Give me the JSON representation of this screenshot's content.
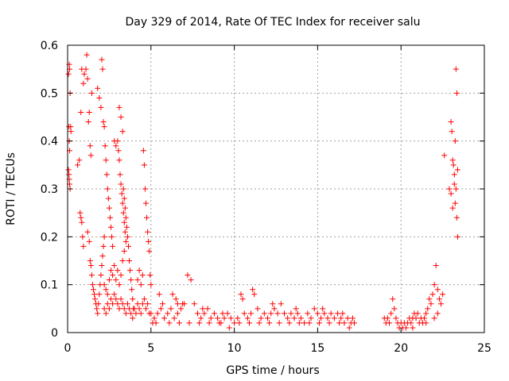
{
  "chart_data": {
    "type": "scatter",
    "title": "Day 329 of 2014, Rate Of TEC Index for receiver salu",
    "xlabel": "GPS time / hours",
    "ylabel": "ROTI / TECUs",
    "xlim": [
      0,
      25
    ],
    "ylim": [
      0,
      0.6
    ],
    "xticks": [
      0,
      5,
      10,
      15,
      20,
      25
    ],
    "yticks": [
      0,
      0.1,
      0.2,
      0.3,
      0.4,
      0.5,
      0.6
    ],
    "xtick_labels": [
      "0",
      "5",
      "10",
      "15",
      "20",
      "25"
    ],
    "ytick_labels": [
      "0",
      "0.1",
      "0.2",
      "0.3",
      "0.4",
      "0.5",
      "0.6"
    ],
    "grid": true,
    "marker": "+",
    "marker_color": "#ff0000",
    "series": [
      {
        "name": "ROTI",
        "points": [
          [
            0.05,
            0.54
          ],
          [
            0.1,
            0.56
          ],
          [
            0.12,
            0.55
          ],
          [
            0.15,
            0.5
          ],
          [
            0.08,
            0.43
          ],
          [
            0.1,
            0.4
          ],
          [
            0.12,
            0.38
          ],
          [
            0.05,
            0.34
          ],
          [
            0.08,
            0.33
          ],
          [
            0.1,
            0.32
          ],
          [
            0.12,
            0.31
          ],
          [
            0.15,
            0.3
          ],
          [
            0.18,
            0.43
          ],
          [
            0.2,
            0.42
          ],
          [
            0.6,
            0.35
          ],
          [
            0.7,
            0.36
          ],
          [
            0.8,
            0.46
          ],
          [
            0.85,
            0.55
          ],
          [
            0.95,
            0.52
          ],
          [
            1.0,
            0.54
          ],
          [
            1.1,
            0.55
          ],
          [
            1.15,
            0.58
          ],
          [
            1.2,
            0.53
          ],
          [
            1.25,
            0.44
          ],
          [
            1.3,
            0.46
          ],
          [
            1.35,
            0.39
          ],
          [
            1.4,
            0.37
          ],
          [
            1.45,
            0.5
          ],
          [
            0.75,
            0.25
          ],
          [
            0.8,
            0.24
          ],
          [
            0.85,
            0.23
          ],
          [
            0.9,
            0.2
          ],
          [
            0.95,
            0.18
          ],
          [
            1.2,
            0.21
          ],
          [
            1.3,
            0.19
          ],
          [
            1.35,
            0.15
          ],
          [
            1.4,
            0.14
          ],
          [
            1.45,
            0.12
          ],
          [
            1.5,
            0.1
          ],
          [
            1.55,
            0.09
          ],
          [
            1.6,
            0.08
          ],
          [
            1.65,
            0.07
          ],
          [
            1.7,
            0.06
          ],
          [
            1.75,
            0.05
          ],
          [
            1.8,
            0.04
          ],
          [
            1.85,
            0.06
          ],
          [
            1.9,
            0.08
          ],
          [
            1.95,
            0.1
          ],
          [
            2.0,
            0.12
          ],
          [
            2.05,
            0.14
          ],
          [
            2.1,
            0.16
          ],
          [
            2.15,
            0.18
          ],
          [
            2.2,
            0.2
          ],
          [
            1.8,
            0.51
          ],
          [
            1.9,
            0.49
          ],
          [
            2.0,
            0.47
          ],
          [
            2.05,
            0.57
          ],
          [
            2.1,
            0.55
          ],
          [
            2.15,
            0.44
          ],
          [
            2.2,
            0.43
          ],
          [
            2.25,
            0.39
          ],
          [
            2.3,
            0.36
          ],
          [
            2.35,
            0.33
          ],
          [
            2.4,
            0.3
          ],
          [
            2.45,
            0.28
          ],
          [
            2.5,
            0.26
          ],
          [
            2.55,
            0.24
          ],
          [
            2.6,
            0.22
          ],
          [
            2.65,
            0.2
          ],
          [
            2.7,
            0.18
          ],
          [
            2.2,
            0.1
          ],
          [
            2.3,
            0.09
          ],
          [
            2.4,
            0.08
          ],
          [
            2.5,
            0.11
          ],
          [
            2.6,
            0.13
          ],
          [
            2.7,
            0.12
          ],
          [
            2.8,
            0.14
          ],
          [
            2.9,
            0.11
          ],
          [
            3.0,
            0.13
          ],
          [
            3.1,
            0.1
          ],
          [
            3.2,
            0.12
          ],
          [
            3.3,
            0.15
          ],
          [
            3.4,
            0.17
          ],
          [
            3.5,
            0.19
          ],
          [
            2.8,
            0.4
          ],
          [
            2.9,
            0.39
          ],
          [
            3.0,
            0.4
          ],
          [
            3.05,
            0.38
          ],
          [
            3.1,
            0.36
          ],
          [
            3.15,
            0.33
          ],
          [
            3.2,
            0.31
          ],
          [
            3.25,
            0.29
          ],
          [
            3.3,
            0.27
          ],
          [
            3.35,
            0.25
          ],
          [
            3.4,
            0.23
          ],
          [
            3.45,
            0.21
          ],
          [
            3.1,
            0.47
          ],
          [
            3.2,
            0.45
          ],
          [
            3.3,
            0.42
          ],
          [
            3.35,
            0.3
          ],
          [
            3.4,
            0.28
          ],
          [
            3.45,
            0.26
          ],
          [
            3.5,
            0.24
          ],
          [
            3.55,
            0.22
          ],
          [
            3.6,
            0.2
          ],
          [
            3.65,
            0.18
          ],
          [
            3.7,
            0.15
          ],
          [
            3.75,
            0.13
          ],
          [
            3.8,
            0.11
          ],
          [
            3.85,
            0.09
          ],
          [
            3.9,
            0.07
          ],
          [
            3.95,
            0.05
          ],
          [
            2.2,
            0.05
          ],
          [
            2.3,
            0.04
          ],
          [
            2.4,
            0.06
          ],
          [
            2.5,
            0.05
          ],
          [
            2.6,
            0.07
          ],
          [
            2.7,
            0.06
          ],
          [
            2.8,
            0.08
          ],
          [
            2.9,
            0.07
          ],
          [
            3.0,
            0.06
          ],
          [
            3.1,
            0.05
          ],
          [
            3.2,
            0.07
          ],
          [
            3.3,
            0.06
          ],
          [
            3.4,
            0.05
          ],
          [
            3.5,
            0.04
          ],
          [
            3.6,
            0.06
          ],
          [
            3.7,
            0.05
          ],
          [
            3.8,
            0.04
          ],
          [
            3.9,
            0.03
          ],
          [
            4.0,
            0.05
          ],
          [
            4.1,
            0.04
          ],
          [
            4.2,
            0.06
          ],
          [
            4.3,
            0.05
          ],
          [
            4.4,
            0.04
          ],
          [
            4.5,
            0.06
          ],
          [
            4.6,
            0.07
          ],
          [
            4.7,
            0.05
          ],
          [
            4.8,
            0.06
          ],
          [
            4.9,
            0.04
          ],
          [
            4.55,
            0.38
          ],
          [
            4.6,
            0.35
          ],
          [
            4.65,
            0.3
          ],
          [
            4.7,
            0.27
          ],
          [
            4.75,
            0.24
          ],
          [
            4.8,
            0.21
          ],
          [
            4.85,
            0.19
          ],
          [
            4.9,
            0.17
          ],
          [
            4.95,
            0.12
          ],
          [
            5.0,
            0.1
          ],
          [
            4.2,
            0.11
          ],
          [
            4.3,
            0.13
          ],
          [
            4.4,
            0.1
          ],
          [
            4.5,
            0.12
          ],
          [
            5.0,
            0.04
          ],
          [
            5.2,
            0.03
          ],
          [
            5.4,
            0.04
          ],
          [
            5.6,
            0.05
          ],
          [
            5.8,
            0.03
          ],
          [
            6.0,
            0.04
          ],
          [
            6.2,
            0.05
          ],
          [
            6.4,
            0.03
          ],
          [
            6.6,
            0.04
          ],
          [
            6.8,
            0.05
          ],
          [
            7.0,
            0.06
          ],
          [
            7.2,
            0.12
          ],
          [
            7.4,
            0.11
          ],
          [
            7.6,
            0.06
          ],
          [
            5.5,
            0.08
          ],
          [
            5.7,
            0.06
          ],
          [
            6.3,
            0.08
          ],
          [
            6.5,
            0.07
          ],
          [
            6.9,
            0.06
          ],
          [
            7.8,
            0.04
          ],
          [
            8.0,
            0.03
          ],
          [
            8.2,
            0.04
          ],
          [
            8.4,
            0.05
          ],
          [
            8.6,
            0.03
          ],
          [
            8.8,
            0.04
          ],
          [
            9.0,
            0.03
          ],
          [
            9.2,
            0.02
          ],
          [
            9.4,
            0.03
          ],
          [
            9.6,
            0.04
          ],
          [
            9.8,
            0.03
          ],
          [
            10.0,
            0.02
          ],
          [
            10.2,
            0.03
          ],
          [
            10.4,
            0.08
          ],
          [
            10.5,
            0.07
          ],
          [
            10.6,
            0.04
          ],
          [
            10.8,
            0.03
          ],
          [
            11.0,
            0.04
          ],
          [
            11.1,
            0.09
          ],
          [
            11.2,
            0.08
          ],
          [
            11.4,
            0.05
          ],
          [
            11.6,
            0.03
          ],
          [
            11.8,
            0.04
          ],
          [
            12.0,
            0.03
          ],
          [
            12.2,
            0.04
          ],
          [
            12.4,
            0.05
          ],
          [
            12.6,
            0.04
          ],
          [
            12.8,
            0.06
          ],
          [
            13.0,
            0.04
          ],
          [
            13.2,
            0.03
          ],
          [
            13.4,
            0.04
          ],
          [
            13.6,
            0.03
          ],
          [
            13.8,
            0.04
          ],
          [
            14.0,
            0.03
          ],
          [
            14.2,
            0.02
          ],
          [
            14.4,
            0.04
          ],
          [
            14.6,
            0.03
          ],
          [
            14.8,
            0.05
          ],
          [
            15.0,
            0.04
          ],
          [
            15.2,
            0.03
          ],
          [
            15.4,
            0.04
          ],
          [
            15.6,
            0.03
          ],
          [
            15.8,
            0.04
          ],
          [
            16.0,
            0.03
          ],
          [
            16.2,
            0.04
          ],
          [
            16.4,
            0.03
          ],
          [
            16.6,
            0.02
          ],
          [
            16.8,
            0.03
          ],
          [
            17.0,
            0.02
          ],
          [
            17.1,
            0.03
          ],
          [
            17.2,
            0.02
          ],
          [
            5.1,
            0.02
          ],
          [
            5.3,
            0.02
          ],
          [
            6.1,
            0.02
          ],
          [
            6.7,
            0.02
          ],
          [
            7.3,
            0.02
          ],
          [
            7.9,
            0.02
          ],
          [
            8.5,
            0.02
          ],
          [
            9.1,
            0.02
          ],
          [
            9.7,
            0.01
          ],
          [
            10.3,
            0.02
          ],
          [
            10.9,
            0.02
          ],
          [
            11.5,
            0.02
          ],
          [
            12.1,
            0.02
          ],
          [
            12.7,
            0.02
          ],
          [
            13.3,
            0.02
          ],
          [
            13.9,
            0.02
          ],
          [
            14.5,
            0.02
          ],
          [
            15.1,
            0.02
          ],
          [
            15.7,
            0.02
          ],
          [
            16.3,
            0.02
          ],
          [
            16.9,
            0.01
          ],
          [
            8.1,
            0.05
          ],
          [
            9.3,
            0.04
          ],
          [
            12.3,
            0.06
          ],
          [
            13.7,
            0.05
          ],
          [
            15.3,
            0.05
          ],
          [
            16.5,
            0.04
          ],
          [
            6.6,
            0.06
          ],
          [
            19.0,
            0.03
          ],
          [
            19.1,
            0.02
          ],
          [
            19.2,
            0.03
          ],
          [
            19.3,
            0.02
          ],
          [
            19.4,
            0.04
          ],
          [
            19.5,
            0.07
          ],
          [
            19.6,
            0.05
          ],
          [
            19.7,
            0.03
          ],
          [
            19.8,
            0.02
          ],
          [
            19.9,
            0.01
          ],
          [
            20.0,
            0.02
          ],
          [
            20.1,
            0.01
          ],
          [
            20.2,
            0.02
          ],
          [
            20.3,
            0.01
          ],
          [
            20.4,
            0.02
          ],
          [
            20.5,
            0.03
          ],
          [
            20.6,
            0.02
          ],
          [
            20.7,
            0.03
          ],
          [
            20.8,
            0.04
          ],
          [
            20.9,
            0.03
          ],
          [
            21.0,
            0.04
          ],
          [
            21.1,
            0.02
          ],
          [
            21.2,
            0.03
          ],
          [
            21.3,
            0.02
          ],
          [
            21.4,
            0.03
          ],
          [
            21.5,
            0.04
          ],
          [
            21.6,
            0.05
          ],
          [
            21.7,
            0.07
          ],
          [
            21.8,
            0.06
          ],
          [
            21.9,
            0.08
          ],
          [
            22.0,
            0.1
          ],
          [
            22.1,
            0.14
          ],
          [
            22.2,
            0.09
          ],
          [
            22.3,
            0.07
          ],
          [
            22.4,
            0.06
          ],
          [
            22.5,
            0.08
          ],
          [
            22.0,
            0.03
          ],
          [
            22.2,
            0.04
          ],
          [
            21.5,
            0.02
          ],
          [
            20.7,
            0.01
          ],
          [
            22.6,
            0.37
          ],
          [
            22.9,
            0.3
          ],
          [
            23.0,
            0.44
          ],
          [
            23.05,
            0.42
          ],
          [
            23.1,
            0.36
          ],
          [
            23.15,
            0.35
          ],
          [
            23.2,
            0.33
          ],
          [
            23.25,
            0.4
          ],
          [
            23.3,
            0.55
          ],
          [
            23.35,
            0.5
          ],
          [
            23.3,
            0.3
          ],
          [
            23.35,
            0.24
          ],
          [
            23.4,
            0.2
          ],
          [
            23.1,
            0.26
          ],
          [
            23.0,
            0.29
          ],
          [
            23.2,
            0.31
          ],
          [
            23.4,
            0.34
          ],
          [
            23.25,
            0.27
          ]
        ]
      }
    ]
  }
}
